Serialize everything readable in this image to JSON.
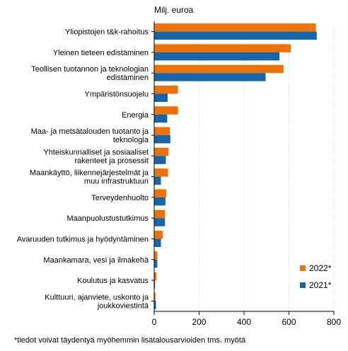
{
  "chart_data": {
    "type": "bar",
    "orientation": "horizontal",
    "title": "",
    "unit_label": "Milj. euroa",
    "categories": [
      "Yliopistojen t&k-rahoitus",
      "Yleinen tieteen edistäminen",
      "Teollisen tuotannon ja teknologian edistäminen",
      "Ympäristönsuojelu",
      "Energia",
      "Maa- ja metsätalouden tuotanto ja teknologia",
      "Yhteiskunnalliset ja sosiaaliset rakenteet ja prosessit",
      "Maankäyttö, liikennejärjestelmät ja muu infrastruktuuri",
      "Terveydenhuolto",
      "Maanpuolustustutkimus",
      "Avaruuden tutkimus ja hyödyntäminen",
      "Maankamara, vesi ja ilmakehä",
      "Koulutus ja kasvatus",
      "Kulttuuri, ajanviete, uskonto ja joukkoviestintä"
    ],
    "category_lines": [
      [
        "Yliopistojen t&k-rahoitus"
      ],
      [
        "Yleinen tieteen edistäminen"
      ],
      [
        "Teollisen tuotannon ja teknologian",
        "edistäminen"
      ],
      [
        "Ympäristönsuojelu"
      ],
      [
        "Energia"
      ],
      [
        "Maa- ja metsätalouden tuotanto ja",
        "teknologia"
      ],
      [
        "Yhteiskunnalliset ja sosiaaliset",
        "rakenteet ja prosessit"
      ],
      [
        "Maankäyttö, liikennejärjestelmät ja",
        "muu infrastruktuuri"
      ],
      [
        "Terveydenhuolto"
      ],
      [
        "Maanpuolustustutkimus"
      ],
      [
        "Avaruuden tutkimus ja hyödyntäminen"
      ],
      [
        "Maankamara, vesi ja ilmakehä"
      ],
      [
        "Koulutus ja kasvatus"
      ],
      [
        "Kulttuuri, ajanviete, uskonto ja",
        "joukkoviestintä"
      ]
    ],
    "series": [
      {
        "name": "2022*",
        "color": "#ee7203",
        "values": [
          720,
          608,
          576,
          106,
          106,
          70,
          64,
          62,
          54,
          48,
          38,
          14,
          10,
          6
        ]
      },
      {
        "name": "2021*",
        "color": "#1565a8",
        "values": [
          724,
          558,
          496,
          60,
          58,
          72,
          52,
          30,
          50,
          48,
          30,
          14,
          4,
          8
        ]
      }
    ],
    "x_ticks": [
      "0",
      "200",
      "400",
      "600",
      "800"
    ],
    "xlim": [
      0,
      800
    ],
    "grid": true,
    "legend_position": "bottom-right",
    "footnote": "*tiedot voivat täydentyä myöhemmin lisätalousarvioiden tms. myötä"
  }
}
